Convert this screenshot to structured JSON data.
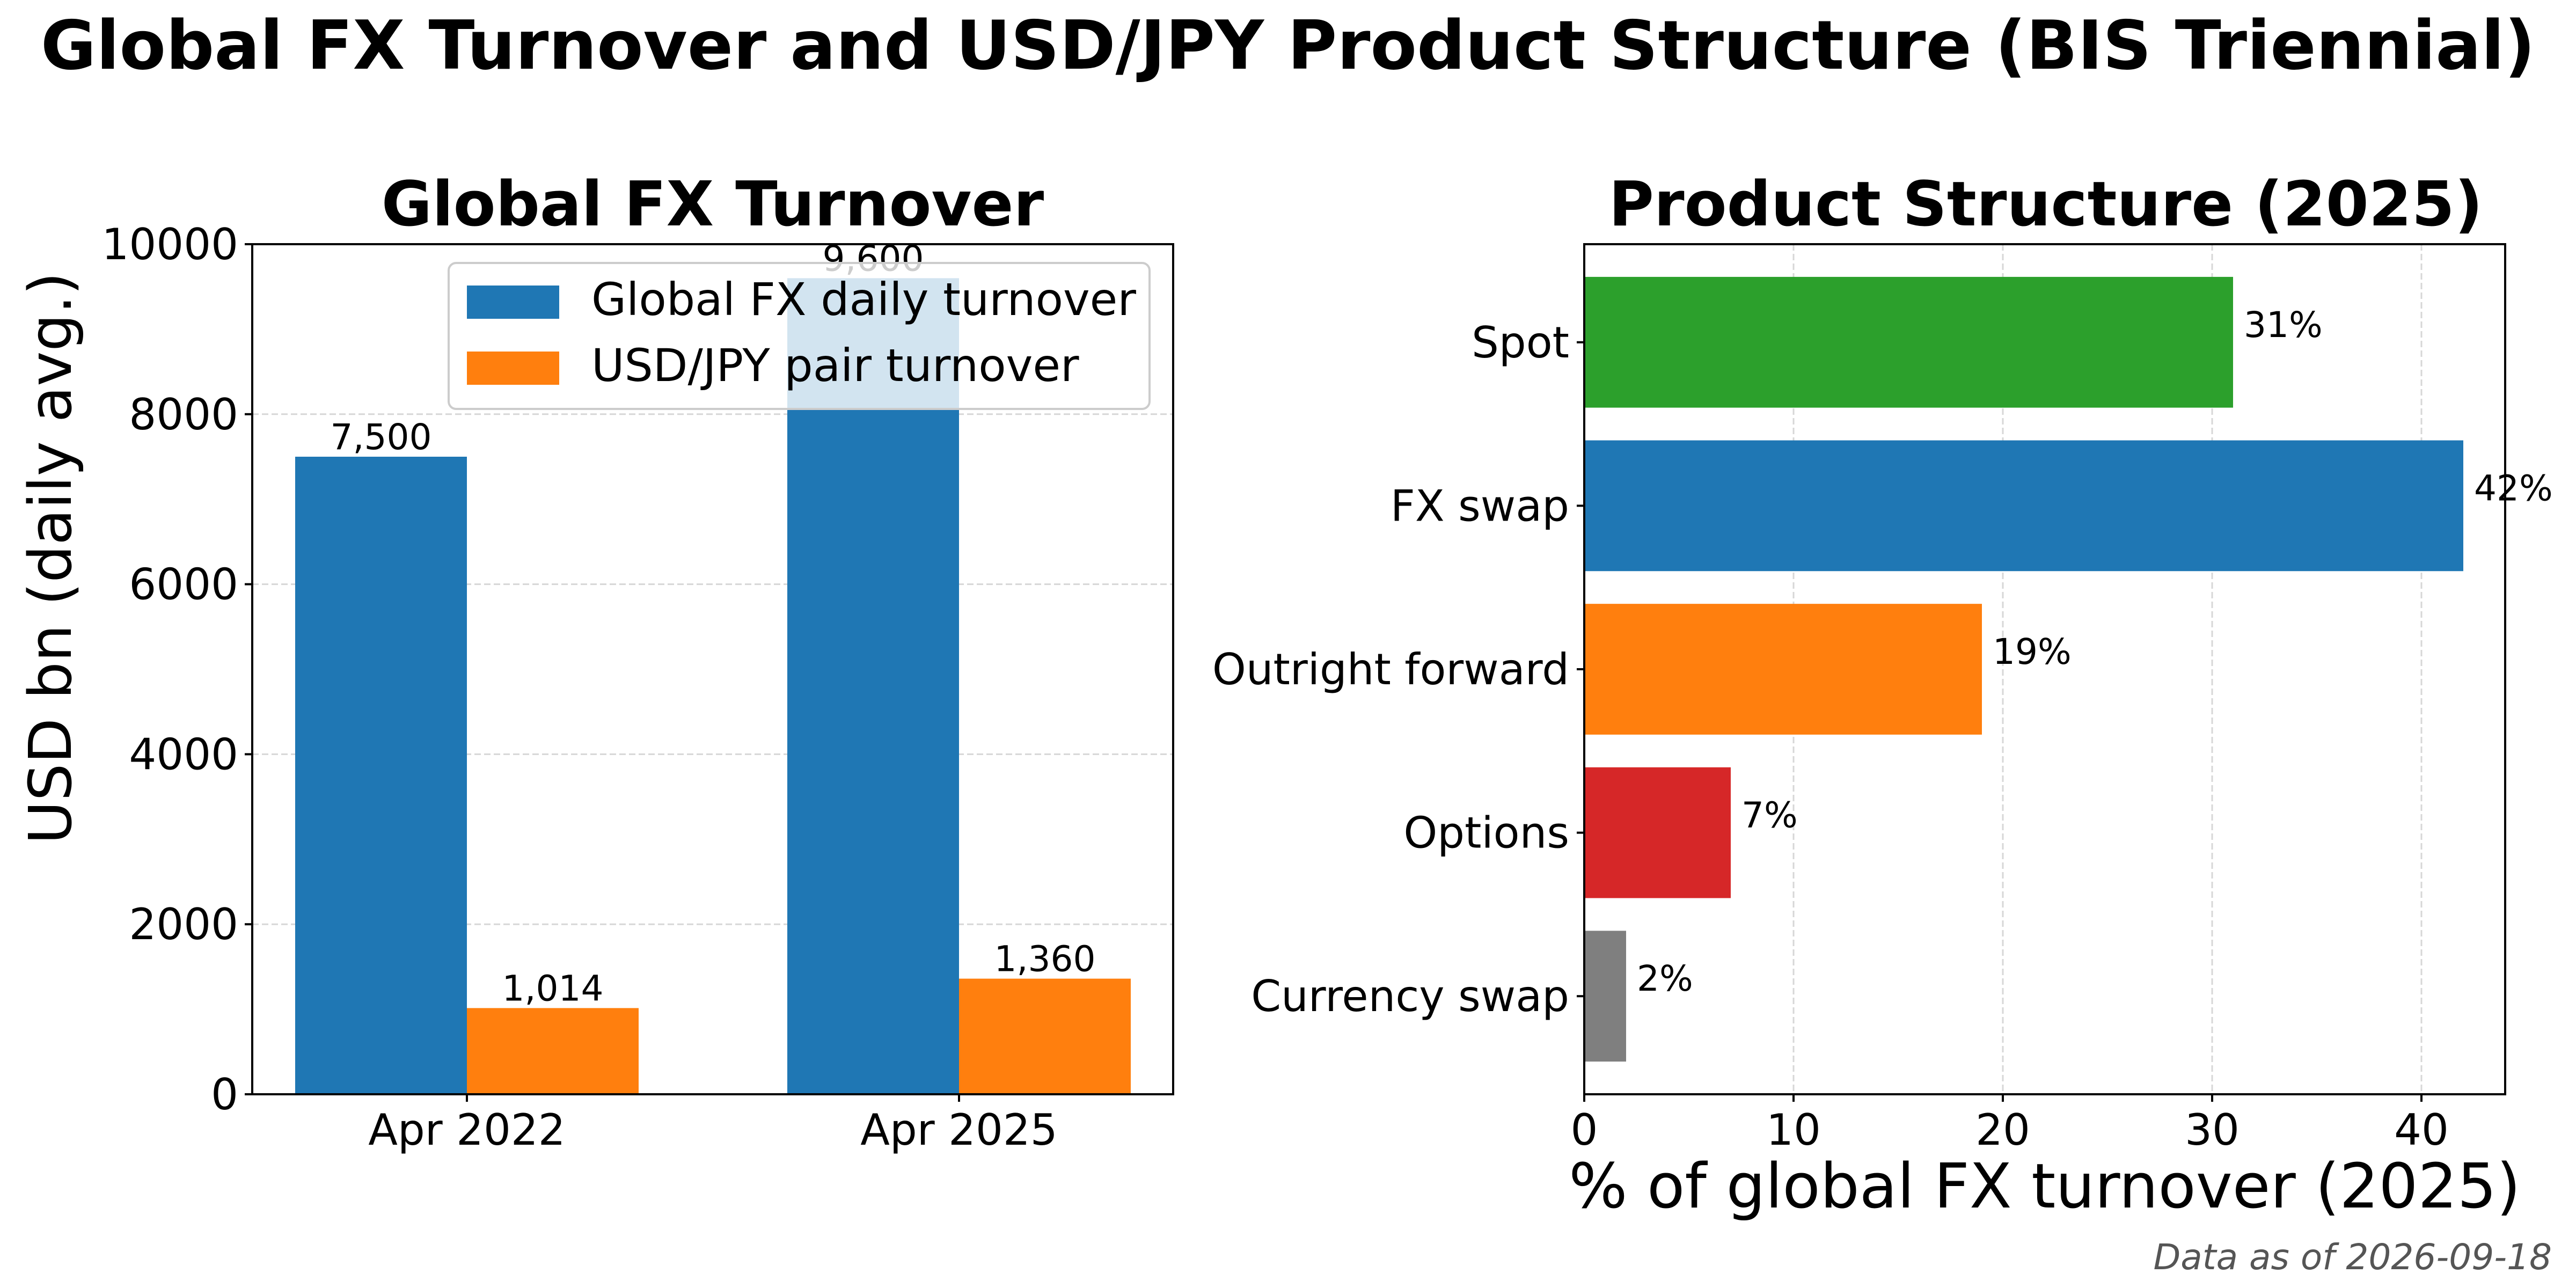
{
  "figure": {
    "title": "Global FX Turnover and USD/JPY Product Structure (BIS Triennial)",
    "footnote": "Data as of 2026-09-18"
  },
  "colors": {
    "blue": "#1f77b4",
    "orange": "#ff7f0e",
    "green": "#2ca02c",
    "red": "#d62728",
    "gray": "#7f7f7f"
  },
  "chart_data": [
    {
      "type": "bar",
      "title": "Global FX Turnover",
      "xlabel": "",
      "ylabel": "USD bn (daily avg.)",
      "categories": [
        "Apr 2022",
        "Apr 2025"
      ],
      "series": [
        {
          "name": "Global FX daily turnover",
          "values": [
            7500,
            9600
          ],
          "labels": [
            "7,500",
            "9,600"
          ],
          "color": "#1f77b4"
        },
        {
          "name": "USD/JPY pair turnover",
          "values": [
            1014,
            1360
          ],
          "labels": [
            "1,014",
            "1,360"
          ],
          "color": "#ff7f0e"
        }
      ],
      "ylim": [
        0,
        10000
      ],
      "yticks": [
        0,
        2000,
        4000,
        6000,
        8000,
        10000
      ],
      "grid": "y",
      "legend": "top-right"
    },
    {
      "type": "bar",
      "orientation": "horizontal",
      "title": "Product Structure (2025)",
      "xlabel": "% of global FX turnover (2025)",
      "ylabel": "",
      "categories": [
        "Spot",
        "FX swap",
        "Outright forward",
        "Options",
        "Currency swap"
      ],
      "values": [
        31,
        42,
        19,
        7,
        2
      ],
      "labels": [
        "31%",
        "42%",
        "19%",
        "7%",
        "2%"
      ],
      "colors": [
        "#2ca02c",
        "#1f77b4",
        "#ff7f0e",
        "#d62728",
        "#7f7f7f"
      ],
      "xlim": [
        0,
        44
      ],
      "xticks": [
        0,
        10,
        20,
        30,
        40
      ],
      "grid": "x"
    }
  ]
}
